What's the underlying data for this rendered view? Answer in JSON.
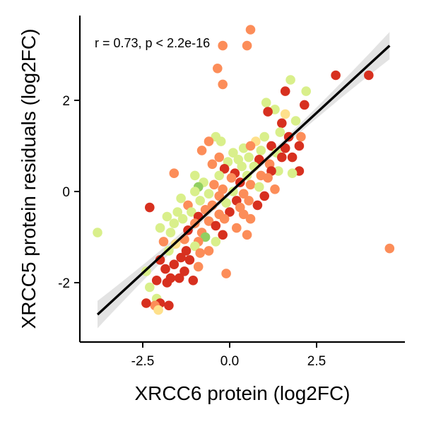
{
  "chart_data": {
    "type": "scatter",
    "xlabel": "XRCC6 protein (log2FC)",
    "ylabel": "XRCC5 protein residuals (log2FC)",
    "annotation": "r = 0.73, p < 2.2e-16",
    "xlim": [
      -4.2,
      5.0
    ],
    "ylim": [
      -3.3,
      3.9
    ],
    "x_ticks": [
      -2.5,
      0.0,
      2.5
    ],
    "x_tick_labels": [
      "-2.5",
      "0.0",
      "2.5"
    ],
    "y_ticks": [
      -2,
      0,
      2
    ],
    "y_tick_labels": [
      "-2",
      "0",
      "2"
    ],
    "grid": false,
    "legend": "none",
    "colors": {
      "red": "#d7301f",
      "orange": "#fc8d59",
      "lightyellow": "#fee08b",
      "lightgreen": "#d9ef8b",
      "green": "#91cf60",
      "fit_line": "#000000",
      "ci_band": "#d9d9d9"
    },
    "regression": {
      "x": [
        -3.8,
        4.6
      ],
      "y": [
        -2.7,
        3.2
      ],
      "ci_halfwidth_ends": 0.3,
      "ci_halfwidth_center": 0.06
    },
    "points": [
      [
        -3.8,
        -0.9,
        "lightgreen"
      ],
      [
        4.6,
        -1.25,
        "orange"
      ],
      [
        0.6,
        3.55,
        "orange"
      ],
      [
        -0.2,
        3.2,
        "orange"
      ],
      [
        0.5,
        3.2,
        "orange"
      ],
      [
        -0.35,
        2.7,
        "orange"
      ],
      [
        -0.2,
        2.35,
        "orange"
      ],
      [
        1.75,
        2.45,
        "lightgreen"
      ],
      [
        2.2,
        2.2,
        "lightgreen"
      ],
      [
        1.6,
        2.2,
        "red"
      ],
      [
        3.05,
        2.55,
        "red"
      ],
      [
        4.0,
        2.55,
        "red"
      ],
      [
        1.05,
        1.95,
        "lightgreen"
      ],
      [
        1.3,
        1.8,
        "lightgreen"
      ],
      [
        1.6,
        1.7,
        "lightyellow"
      ],
      [
        2.15,
        1.9,
        "red"
      ],
      [
        1.1,
        1.75,
        "red"
      ],
      [
        1.5,
        1.5,
        "red"
      ],
      [
        1.9,
        1.55,
        "lightgreen"
      ],
      [
        1.45,
        1.3,
        "lightgreen"
      ],
      [
        1.7,
        1.2,
        "red"
      ],
      [
        2.05,
        1.2,
        "orange"
      ],
      [
        -0.4,
        1.2,
        "lightgreen"
      ],
      [
        -0.6,
        1.1,
        "orange"
      ],
      [
        -0.25,
        1.1,
        "lightgreen"
      ],
      [
        1.0,
        1.2,
        "lightgreen"
      ],
      [
        0.75,
        1.1,
        "lightyellow"
      ],
      [
        2.0,
        1.0,
        "red"
      ],
      [
        1.2,
        1.0,
        "red"
      ],
      [
        1.6,
        0.95,
        "red"
      ],
      [
        0.4,
        0.95,
        "lightgreen"
      ],
      [
        0.6,
        1.0,
        "orange"
      ],
      [
        0.9,
        0.9,
        "lightgreen"
      ],
      [
        1.35,
        0.85,
        "lightgreen"
      ],
      [
        -0.8,
        0.9,
        "orange"
      ],
      [
        0.1,
        0.85,
        "lightgreen"
      ],
      [
        1.5,
        0.75,
        "red"
      ],
      [
        1.8,
        0.75,
        "red"
      ],
      [
        0.25,
        0.7,
        "lightgreen"
      ],
      [
        0.55,
        0.75,
        "lightgreen"
      ],
      [
        -0.3,
        0.75,
        "orange"
      ],
      [
        0.85,
        0.7,
        "red"
      ],
      [
        -0.05,
        0.65,
        "lightgreen"
      ],
      [
        -0.5,
        0.6,
        "orange"
      ],
      [
        1.15,
        0.6,
        "orange"
      ],
      [
        0.35,
        0.55,
        "lightgreen"
      ],
      [
        0.7,
        0.55,
        "lightgreen"
      ],
      [
        -0.15,
        0.5,
        "red"
      ],
      [
        1.4,
        0.45,
        "lightgreen"
      ],
      [
        0.15,
        0.4,
        "red"
      ],
      [
        1.2,
        0.45,
        "red"
      ],
      [
        2.0,
        0.45,
        "red"
      ],
      [
        0.9,
        0.35,
        "orange"
      ],
      [
        0.5,
        0.35,
        "lightgreen"
      ],
      [
        -1.6,
        0.4,
        "orange"
      ],
      [
        -1.0,
        0.35,
        "lightgreen"
      ],
      [
        -0.3,
        0.35,
        "lightgreen"
      ],
      [
        0.05,
        0.3,
        "orange"
      ],
      [
        1.1,
        0.3,
        "orange"
      ],
      [
        1.8,
        0.4,
        "lightgreen"
      ],
      [
        -0.75,
        0.2,
        "lightgreen"
      ],
      [
        0.3,
        0.2,
        "red"
      ],
      [
        0.6,
        0.15,
        "orange"
      ],
      [
        -0.45,
        0.15,
        "orange"
      ],
      [
        -0.9,
        0.1,
        "green"
      ],
      [
        0.85,
        0.1,
        "lightgreen"
      ],
      [
        -0.2,
        0.05,
        "orange"
      ],
      [
        1.3,
        0.05,
        "orange"
      ],
      [
        0.1,
        0.0,
        "lightgreen"
      ],
      [
        -1.0,
        0.0,
        "lightgreen"
      ],
      [
        0.4,
        -0.05,
        "orange"
      ],
      [
        -0.6,
        -0.05,
        "lightgreen"
      ],
      [
        1.0,
        -0.1,
        "red"
      ],
      [
        -0.3,
        -0.1,
        "orange"
      ],
      [
        0.2,
        -0.2,
        "red"
      ],
      [
        -1.4,
        -0.15,
        "lightgreen"
      ],
      [
        -0.85,
        -0.2,
        "lightgreen"
      ],
      [
        0.55,
        -0.2,
        "orange"
      ],
      [
        -0.1,
        -0.25,
        "lightgreen"
      ],
      [
        0.8,
        -0.3,
        "red"
      ],
      [
        -2.3,
        -0.35,
        "red"
      ],
      [
        -1.2,
        -0.3,
        "orange"
      ],
      [
        -0.5,
        -0.3,
        "orange"
      ],
      [
        0.3,
        -0.35,
        "orange"
      ],
      [
        -0.7,
        -0.4,
        "orange"
      ],
      [
        0.0,
        -0.45,
        "red"
      ],
      [
        -1.5,
        -0.45,
        "lightgreen"
      ],
      [
        -1.1,
        -0.45,
        "lightgreen"
      ],
      [
        -0.3,
        -0.5,
        "orange"
      ],
      [
        0.4,
        -0.5,
        "orange"
      ],
      [
        -0.9,
        -0.55,
        "red"
      ],
      [
        -1.8,
        -0.55,
        "lightgreen"
      ],
      [
        -1.35,
        -0.6,
        "lightgreen"
      ],
      [
        -0.15,
        -0.6,
        "orange"
      ],
      [
        0.6,
        -0.6,
        "orange"
      ],
      [
        -0.6,
        -0.65,
        "orange"
      ],
      [
        -1.6,
        -0.7,
        "lightgreen"
      ],
      [
        -1.0,
        -0.7,
        "orange"
      ],
      [
        -2.0,
        -0.8,
        "lightgreen"
      ],
      [
        -0.4,
        -0.75,
        "red"
      ],
      [
        0.2,
        -0.8,
        "orange"
      ],
      [
        -1.2,
        -0.85,
        "red"
      ],
      [
        -0.8,
        -0.9,
        "orange"
      ],
      [
        -1.7,
        -0.9,
        "lightgreen"
      ],
      [
        -0.2,
        -0.95,
        "red"
      ],
      [
        0.5,
        -0.95,
        "orange"
      ],
      [
        -0.7,
        -1.0,
        "green"
      ],
      [
        -1.3,
        -1.05,
        "orange"
      ],
      [
        -0.9,
        -1.1,
        "orange"
      ],
      [
        -1.9,
        -1.1,
        "orange"
      ],
      [
        -0.4,
        -1.1,
        "lightgreen"
      ],
      [
        -1.55,
        -1.15,
        "lightyellow"
      ],
      [
        -1.0,
        -1.2,
        "lightgreen"
      ],
      [
        -0.6,
        -1.3,
        "orange"
      ],
      [
        -1.25,
        -1.3,
        "red"
      ],
      [
        -1.75,
        -1.3,
        "lightgreen"
      ],
      [
        -0.85,
        -1.35,
        "orange"
      ],
      [
        -1.4,
        -1.45,
        "red"
      ],
      [
        -1.15,
        -1.5,
        "red"
      ],
      [
        -2.0,
        -1.5,
        "red"
      ],
      [
        -1.6,
        -1.6,
        "red"
      ],
      [
        -0.9,
        -1.65,
        "orange"
      ],
      [
        -1.85,
        -1.7,
        "red"
      ],
      [
        -2.4,
        -1.75,
        "lightgreen"
      ],
      [
        -1.3,
        -1.75,
        "red"
      ],
      [
        -0.1,
        -1.8,
        "orange"
      ],
      [
        -1.7,
        -1.9,
        "red"
      ],
      [
        -2.1,
        -1.95,
        "red"
      ],
      [
        -1.45,
        -1.9,
        "red"
      ],
      [
        -2.3,
        -2.1,
        "lightgreen"
      ],
      [
        -1.05,
        -1.95,
        "red"
      ],
      [
        -1.8,
        -2.0,
        "red"
      ],
      [
        -2.4,
        -2.45,
        "lightyellow"
      ],
      [
        -2.1,
        -2.35,
        "lightgreen"
      ],
      [
        -2.0,
        -2.45,
        "red"
      ],
      [
        -2.15,
        -2.5,
        "orange"
      ],
      [
        -2.4,
        -2.45,
        "red"
      ],
      [
        -1.75,
        -2.5,
        "red"
      ],
      [
        -2.05,
        -2.6,
        "lightyellow"
      ]
    ]
  }
}
